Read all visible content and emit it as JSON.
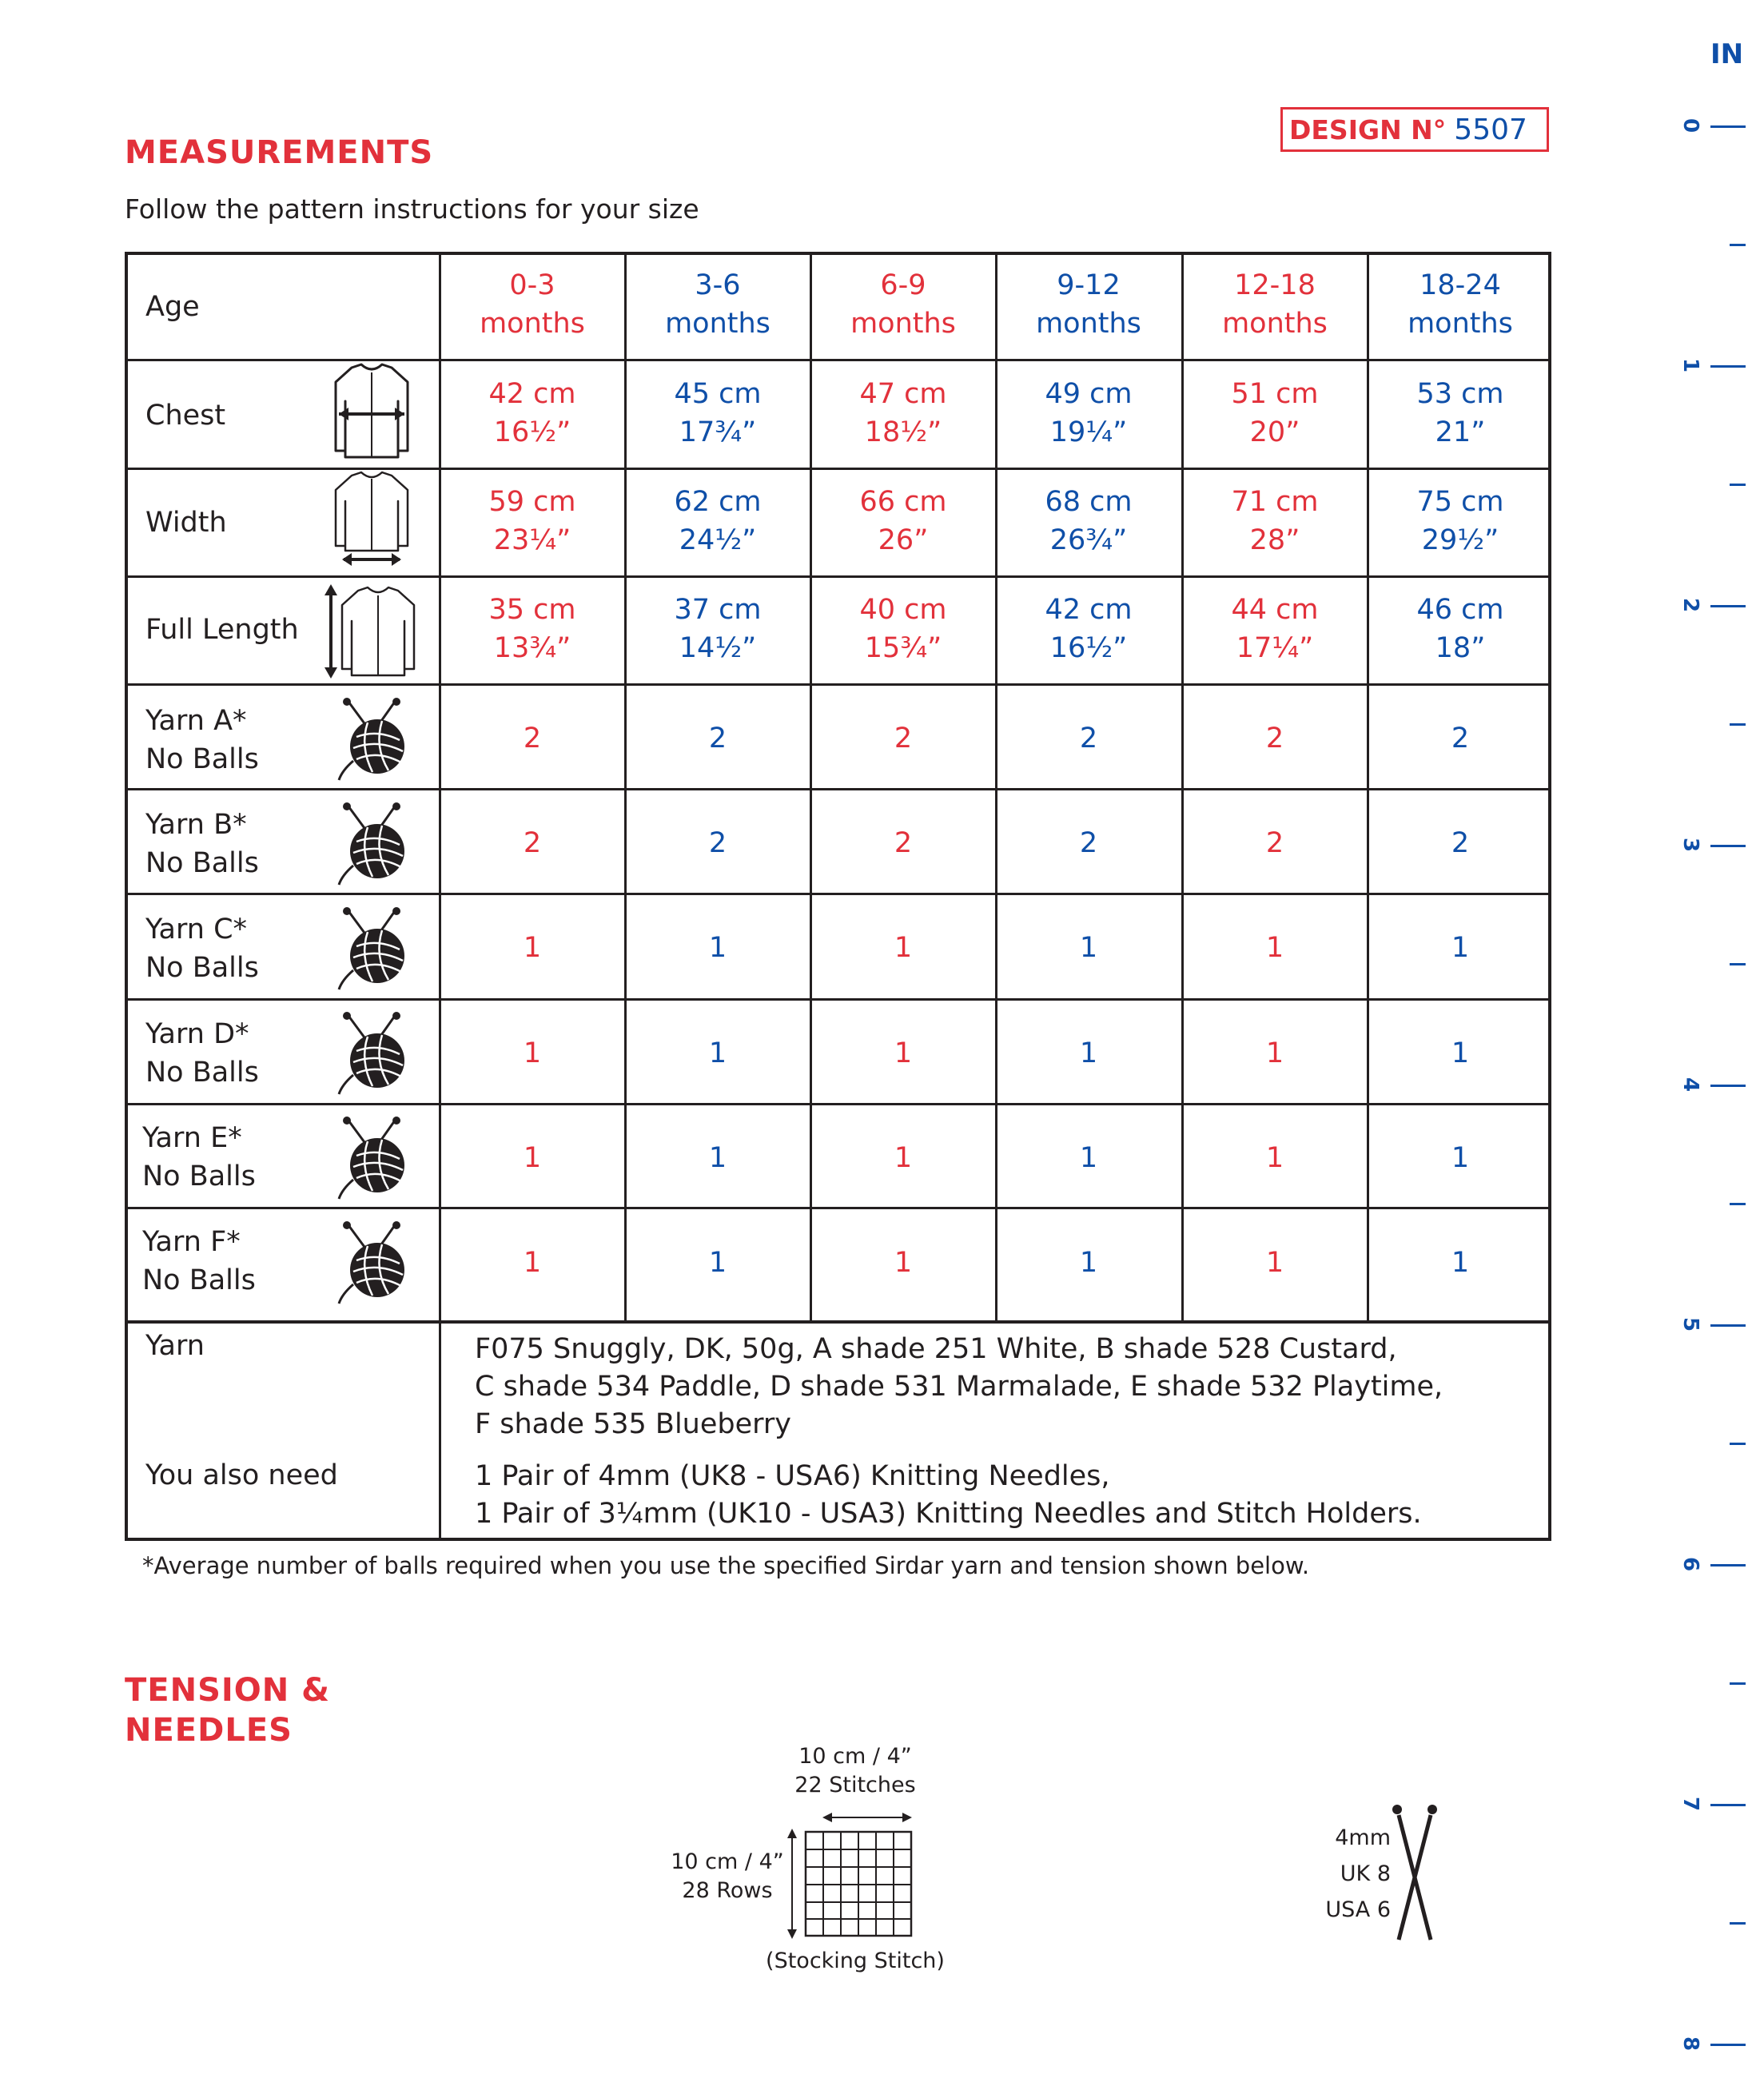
{
  "headings": {
    "measurements": "MEASUREMENTS",
    "tension_line1": "TENSION &",
    "tension_line2": "NEEDLES"
  },
  "intro": "Follow the pattern instructions for your size",
  "design": {
    "label": "DESIGN N°",
    "number": "5507"
  },
  "table": {
    "sizes": [
      {
        "range": "0-3",
        "unit": "months"
      },
      {
        "range": "3-6",
        "unit": "months"
      },
      {
        "range": "6-9",
        "unit": "months"
      },
      {
        "range": "9-12",
        "unit": "months"
      },
      {
        "range": "12-18",
        "unit": "months"
      },
      {
        "range": "18-24",
        "unit": "months"
      }
    ],
    "row_labels": {
      "age": "Age",
      "chest": "Chest",
      "width": "Width",
      "full_length": "Full Length",
      "yarn_a_1": "Yarn A*",
      "yarn_a_2": "No Balls",
      "yarn_b_1": "Yarn B*",
      "yarn_b_2": "No Balls",
      "yarn_c_1": "Yarn C*",
      "yarn_c_2": "No Balls",
      "yarn_d_1": "Yarn D*",
      "yarn_d_2": "No Balls",
      "yarn_e_1": "Yarn E*",
      "yarn_e_2": "No Balls",
      "yarn_f_1": "Yarn F*",
      "yarn_f_2": "No Balls"
    },
    "chest": [
      {
        "cm": "42 cm",
        "in": "16½”"
      },
      {
        "cm": "45 cm",
        "in": "17¾”"
      },
      {
        "cm": "47 cm",
        "in": "18½”"
      },
      {
        "cm": "49 cm",
        "in": "19¼”"
      },
      {
        "cm": "51 cm",
        "in": "20”"
      },
      {
        "cm": "53 cm",
        "in": "21”"
      }
    ],
    "width": [
      {
        "cm": "59 cm",
        "in": "23¼”"
      },
      {
        "cm": "62 cm",
        "in": "24½”"
      },
      {
        "cm": "66 cm",
        "in": "26”"
      },
      {
        "cm": "68 cm",
        "in": "26¾”"
      },
      {
        "cm": "71 cm",
        "in": "28”"
      },
      {
        "cm": "75 cm",
        "in": "29½”"
      }
    ],
    "full_length": [
      {
        "cm": "35 cm",
        "in": "13¾”"
      },
      {
        "cm": "37 cm",
        "in": "14½”"
      },
      {
        "cm": "40 cm",
        "in": "15¾”"
      },
      {
        "cm": "42 cm",
        "in": "16½”"
      },
      {
        "cm": "44 cm",
        "in": "17¼”"
      },
      {
        "cm": "46 cm",
        "in": "18”"
      }
    ],
    "yarn_a": [
      "2",
      "2",
      "2",
      "2",
      "2",
      "2"
    ],
    "yarn_b": [
      "2",
      "2",
      "2",
      "2",
      "2",
      "2"
    ],
    "yarn_c": [
      "1",
      "1",
      "1",
      "1",
      "1",
      "1"
    ],
    "yarn_d": [
      "1",
      "1",
      "1",
      "1",
      "1",
      "1"
    ],
    "yarn_e": [
      "1",
      "1",
      "1",
      "1",
      "1",
      "1"
    ],
    "yarn_f": [
      "1",
      "1",
      "1",
      "1",
      "1",
      "1"
    ],
    "yarn_label": "Yarn",
    "yarn_text": [
      "F075 Snuggly, DK, 50g, A shade 251 White, B shade 528 Custard,",
      "C shade 534 Paddle, D shade 531 Marmalade, E shade 532 Playtime,",
      "F shade 535 Blueberry"
    ],
    "also_need_label": "You also need",
    "also_need_text": [
      "1 Pair of 4mm (UK8 - USA6) Knitting Needles,",
      "1 Pair of 3¼mm (UK10 - USA3) Knitting Needles and Stitch Holders."
    ]
  },
  "footnote": "*Average number of balls required when you use the specified Sirdar yarn and tension shown below.",
  "tension": {
    "width_label": "10 cm / 4”",
    "stitches": "22 Stitches",
    "height_label": "10 cm / 4”",
    "rows": "28 Rows",
    "stitch_type": "(Stocking Stitch)",
    "needle_mm": "4mm",
    "needle_uk": "UK 8",
    "needle_usa": "USA 6"
  },
  "ruler": {
    "unit": "IN",
    "numbers": [
      "0",
      "1",
      "2",
      "3",
      "4",
      "5",
      "6",
      "7",
      "8"
    ]
  },
  "colors": {
    "red": "#e2313b",
    "blue": "#0f4fa8",
    "ink": "#231f20"
  }
}
